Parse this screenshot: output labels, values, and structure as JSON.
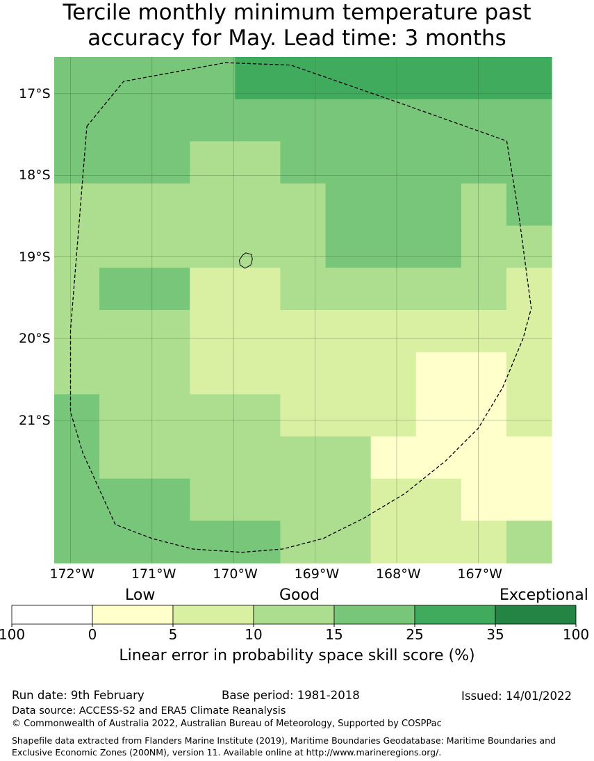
{
  "title": {
    "line1": "Tercile monthly minimum temperature past",
    "line2": "accuracy for May. Lead time: 3 months"
  },
  "map": {
    "lon_range": [
      -172.2,
      -166.1
    ],
    "lat_range": [
      -16.55,
      -22.75
    ],
    "lon_ticks": [
      {
        "value": -172,
        "label": "172°W"
      },
      {
        "value": -171,
        "label": "171°W"
      },
      {
        "value": -170,
        "label": "170°W"
      },
      {
        "value": -169,
        "label": "169°W"
      },
      {
        "value": -168,
        "label": "168°W"
      },
      {
        "value": -167,
        "label": "167°W"
      }
    ],
    "lat_ticks": [
      {
        "value": -17,
        "label": "17°S"
      },
      {
        "value": -18,
        "label": "18°S"
      },
      {
        "value": -19,
        "label": "19°S"
      },
      {
        "value": -20,
        "label": "20°S"
      },
      {
        "value": -21,
        "label": "21°S"
      }
    ],
    "class_colors": [
      "#ffffcc",
      "#d9f0a3",
      "#addd8e",
      "#78c679",
      "#41ab5d"
    ],
    "grid": [
      [
        3,
        3,
        3,
        3,
        4,
        4,
        4,
        4,
        4,
        4,
        4
      ],
      [
        3,
        3,
        3,
        3,
        3,
        3,
        3,
        3,
        3,
        3,
        3
      ],
      [
        3,
        3,
        3,
        2,
        2,
        3,
        3,
        3,
        3,
        3,
        3
      ],
      [
        2,
        2,
        2,
        2,
        2,
        2,
        3,
        3,
        3,
        2,
        3
      ],
      [
        2,
        2,
        2,
        2,
        2,
        2,
        3,
        3,
        3,
        2,
        2
      ],
      [
        2,
        3,
        3,
        1,
        1,
        2,
        2,
        2,
        2,
        2,
        1
      ],
      [
        2,
        2,
        2,
        1,
        1,
        1,
        1,
        1,
        1,
        1,
        1
      ],
      [
        2,
        2,
        2,
        1,
        1,
        1,
        1,
        1,
        0,
        0,
        1
      ],
      [
        3,
        2,
        2,
        2,
        2,
        1,
        1,
        1,
        0,
        0,
        1
      ],
      [
        3,
        2,
        2,
        2,
        2,
        2,
        2,
        0,
        0,
        0,
        0
      ],
      [
        3,
        3,
        3,
        2,
        2,
        2,
        2,
        1,
        1,
        0,
        0
      ],
      [
        3,
        3,
        3,
        3,
        3,
        2,
        2,
        1,
        1,
        1,
        2
      ]
    ],
    "eez_boundary": [
      [
        -171.8,
        -17.4
      ],
      [
        -171.35,
        -16.85
      ],
      [
        -170.1,
        -16.62
      ],
      [
        -169.3,
        -16.65
      ],
      [
        -168.0,
        -17.1
      ],
      [
        -166.65,
        -17.58
      ],
      [
        -166.5,
        -18.5
      ],
      [
        -166.35,
        -19.63
      ],
      [
        -166.45,
        -20.0
      ],
      [
        -166.7,
        -20.6
      ],
      [
        -167.0,
        -21.1
      ],
      [
        -167.4,
        -21.5
      ],
      [
        -167.9,
        -21.9
      ],
      [
        -168.4,
        -22.2
      ],
      [
        -168.9,
        -22.45
      ],
      [
        -169.4,
        -22.58
      ],
      [
        -169.9,
        -22.62
      ],
      [
        -170.5,
        -22.58
      ],
      [
        -171.0,
        -22.45
      ],
      [
        -171.45,
        -22.28
      ],
      [
        -171.6,
        -21.95
      ],
      [
        -171.85,
        -21.4
      ],
      [
        -172.0,
        -20.9
      ],
      [
        -172.0,
        -19.9
      ],
      [
        -171.8,
        -17.4
      ]
    ],
    "island": [
      [
        -169.85,
        -18.95
      ],
      [
        -169.78,
        -18.97
      ],
      [
        -169.77,
        -19.03
      ],
      [
        -169.79,
        -19.1
      ],
      [
        -169.86,
        -19.14
      ],
      [
        -169.92,
        -19.1
      ],
      [
        -169.93,
        -19.04
      ],
      [
        -169.89,
        -18.98
      ],
      [
        -169.85,
        -18.95
      ]
    ]
  },
  "legend": {
    "categories": [
      "Low",
      "Good",
      "Exceptional"
    ],
    "colors": [
      "#ffffff",
      "#ffffcc",
      "#d9f0a3",
      "#addd8e",
      "#78c679",
      "#41ab5d",
      "#238443"
    ],
    "tick_labels": [
      "100",
      "0",
      "5",
      "10",
      "15",
      "25",
      "35",
      "100"
    ],
    "title": "Linear error in probability space skill score (%)"
  },
  "footer": {
    "run_date": "Run date: 9th February",
    "base_period": "Base period: 1981-2018",
    "issued": "Issued: 14/01/2022",
    "data_source": "Data source: ACCESS-S2 and ERA5 Climate Reanalysis",
    "copyright": "© Commonwealth of Australia 2022, Australian Bureau of Meteorology, Supported by COSPPac",
    "shapefile": "Shapefile data extracted from Flanders Marine Institute (2019), Maritime Boundaries Geodatabase: Maritime Boundaries and Exclusive Economic Zones (200NM), version 11. Available online at http://www.marineregions.org/."
  }
}
